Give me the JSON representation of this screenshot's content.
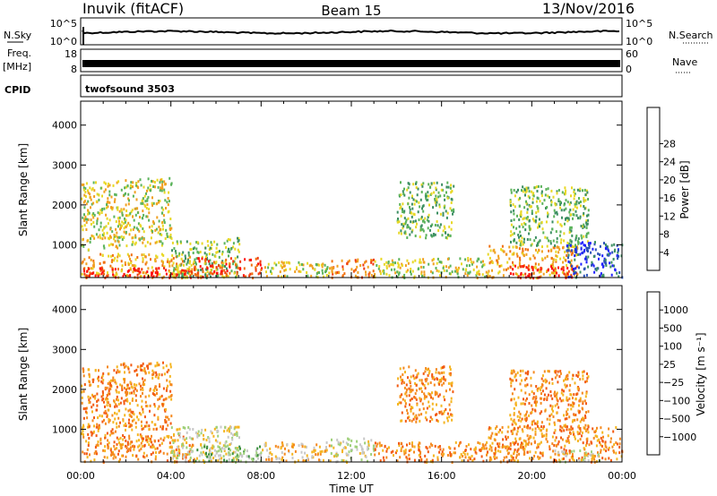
{
  "header": {
    "station": "Inuvik (fitACF)",
    "beam": "Beam 15",
    "date": "13/Nov/2016"
  },
  "strips": {
    "nsky_label": "N.Sky",
    "nsky_ticks": [
      "10^5",
      "10^0"
    ],
    "nsearch_label": "N.Search",
    "nsearch_ticks": [
      "10^5",
      "10^0"
    ],
    "freq_label": "Freq.",
    "freq_unit": "[MHz]",
    "freq_ticks": [
      "18",
      "8"
    ],
    "nave_label": "Nave",
    "nave_ticks": [
      "60",
      "0"
    ],
    "cpid_label": "CPID",
    "cpid_value": "twofsound 3503"
  },
  "colors": {
    "power": [
      "#1f1fff",
      "#2c52b8",
      "#3c8f62",
      "#5bb35b",
      "#e8d825",
      "#f0a020",
      "#f07010",
      "#f03a10",
      "#ff0a0a"
    ],
    "velocity": [
      "#ff1010",
      "#f25a12",
      "#f58a20",
      "#f5b520",
      "#c8c8c8",
      "#9fd07a",
      "#3c9040",
      "#2d69a8",
      "#2a3cc8"
    ]
  },
  "chart_data": [
    {
      "type": "heatmap",
      "panel": "power",
      "xlabel": "",
      "ylabel": "Slant Range [km]",
      "x_ticks": [
        "00:00",
        "04:00",
        "08:00",
        "12:00",
        "16:00",
        "20:00",
        "00:00"
      ],
      "y_ticks": [
        1000,
        2000,
        3000,
        4000
      ],
      "ylim": [
        180,
        4600
      ],
      "colorbar": {
        "label": "Power [dB]",
        "ticks": [
          4,
          8,
          12,
          16,
          20,
          24,
          28
        ]
      },
      "regions": [
        {
          "t0": 0.0,
          "t1": 5.0,
          "r0": 200,
          "r1": 800,
          "level": 5
        },
        {
          "t0": 0.0,
          "t1": 5.0,
          "r0": 200,
          "r1": 450,
          "level": 8
        },
        {
          "t0": 0.0,
          "t1": 1.6,
          "r0": 900,
          "r1": 2600,
          "level": 4
        },
        {
          "t0": 1.6,
          "t1": 4.0,
          "r0": 1000,
          "r1": 2700,
          "level": 4
        },
        {
          "t0": 4.0,
          "t1": 7.0,
          "r0": 200,
          "r1": 1200,
          "level": 3
        },
        {
          "t0": 5.0,
          "t1": 8.0,
          "r0": 200,
          "r1": 700,
          "level": 7
        },
        {
          "t0": 8.0,
          "t1": 11.0,
          "r0": 200,
          "r1": 600,
          "level": 4
        },
        {
          "t0": 11.0,
          "t1": 13.0,
          "r0": 200,
          "r1": 700,
          "level": 6
        },
        {
          "t0": 13.0,
          "t1": 18.0,
          "r0": 200,
          "r1": 700,
          "level": 4
        },
        {
          "t0": 14.0,
          "t1": 16.5,
          "r0": 1200,
          "r1": 2600,
          "level": 3
        },
        {
          "t0": 18.0,
          "t1": 22.0,
          "r0": 200,
          "r1": 1000,
          "level": 5
        },
        {
          "t0": 19.0,
          "t1": 22.0,
          "r0": 200,
          "r1": 500,
          "level": 8
        },
        {
          "t0": 19.0,
          "t1": 22.5,
          "r0": 1000,
          "r1": 2500,
          "level": 3
        },
        {
          "t0": 21.5,
          "t1": 24.0,
          "r0": 200,
          "r1": 1100,
          "level": 1
        }
      ]
    },
    {
      "type": "heatmap",
      "panel": "velocity",
      "xlabel": "Time UT",
      "ylabel": "Slant Range [km]",
      "x_ticks": [
        "00:00",
        "04:00",
        "08:00",
        "12:00",
        "16:00",
        "20:00",
        "00:00"
      ],
      "y_ticks": [
        1000,
        2000,
        3000,
        4000
      ],
      "ylim": [
        180,
        4600
      ],
      "colorbar": {
        "label": "Velocity [m s⁻¹]",
        "ticks": [
          "1000",
          "500",
          "100",
          "25",
          "−25",
          "−100",
          "−500",
          "−1000"
        ]
      },
      "regions": [
        {
          "t0": 0.0,
          "t1": 5.0,
          "r0": 200,
          "r1": 900,
          "level": 2
        },
        {
          "t0": 0.0,
          "t1": 1.6,
          "r0": 900,
          "r1": 2600,
          "level": 2
        },
        {
          "t0": 1.6,
          "t1": 4.0,
          "r0": 1000,
          "r1": 2700,
          "level": 2
        },
        {
          "t0": 4.0,
          "t1": 7.0,
          "r0": 200,
          "r1": 1100,
          "level": 4
        },
        {
          "t0": 5.0,
          "t1": 8.0,
          "r0": 200,
          "r1": 600,
          "level": 5
        },
        {
          "t0": 8.0,
          "t1": 11.0,
          "r0": 200,
          "r1": 700,
          "level": 3
        },
        {
          "t0": 11.0,
          "t1": 13.0,
          "r0": 200,
          "r1": 800,
          "level": 4
        },
        {
          "t0": 13.0,
          "t1": 18.0,
          "r0": 200,
          "r1": 700,
          "level": 2
        },
        {
          "t0": 14.0,
          "t1": 16.5,
          "r0": 1200,
          "r1": 2600,
          "level": 2
        },
        {
          "t0": 18.0,
          "t1": 24.0,
          "r0": 200,
          "r1": 1100,
          "level": 2
        },
        {
          "t0": 19.0,
          "t1": 22.5,
          "r0": 1000,
          "r1": 2500,
          "level": 2
        },
        {
          "t0": 21.0,
          "t1": 23.0,
          "r0": 200,
          "r1": 500,
          "level": 4
        }
      ]
    }
  ]
}
